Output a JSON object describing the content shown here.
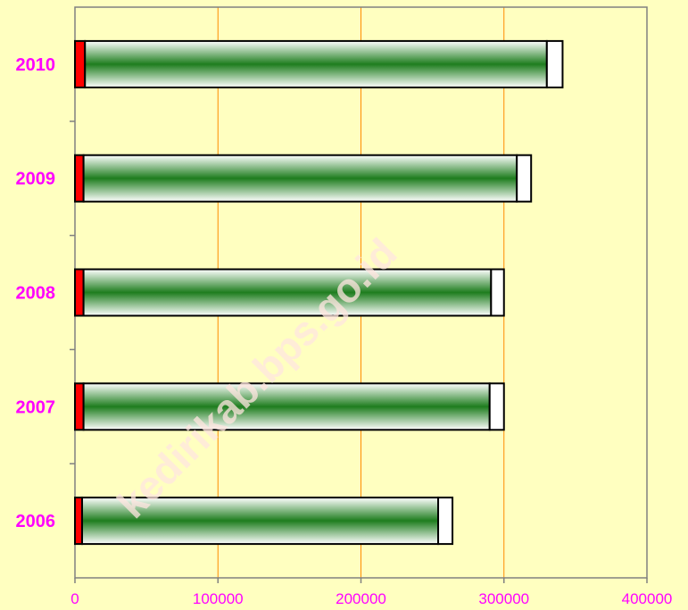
{
  "chart_data": {
    "type": "bar",
    "orientation": "horizontal",
    "stacked": true,
    "categories": [
      "2006",
      "2007",
      "2008",
      "2009",
      "2010"
    ],
    "series": [
      {
        "values": [
          5000,
          6000,
          6000,
          6000,
          7000
        ],
        "color": "#ff0000"
      },
      {
        "values": [
          249000,
          284000,
          285000,
          303000,
          323000
        ],
        "color": "#1e7d1e"
      },
      {
        "values": [
          10000,
          10000,
          9000,
          10000,
          11000
        ],
        "color": "#ffffff"
      }
    ],
    "x_ticks": [
      "0",
      "100000",
      "200000",
      "300000",
      "400000"
    ],
    "xlim": [
      0,
      400000
    ],
    "title": "",
    "xlabel": "",
    "ylabel": "",
    "grid": "vertical",
    "legend": "none",
    "colors": {
      "background": "#ffffc0",
      "gridline": "#ff8c00",
      "axis": "#808080",
      "labels": "#ff00ff",
      "bar_outline": "#000000"
    }
  },
  "watermark": "kedirikab.bps.go.id"
}
